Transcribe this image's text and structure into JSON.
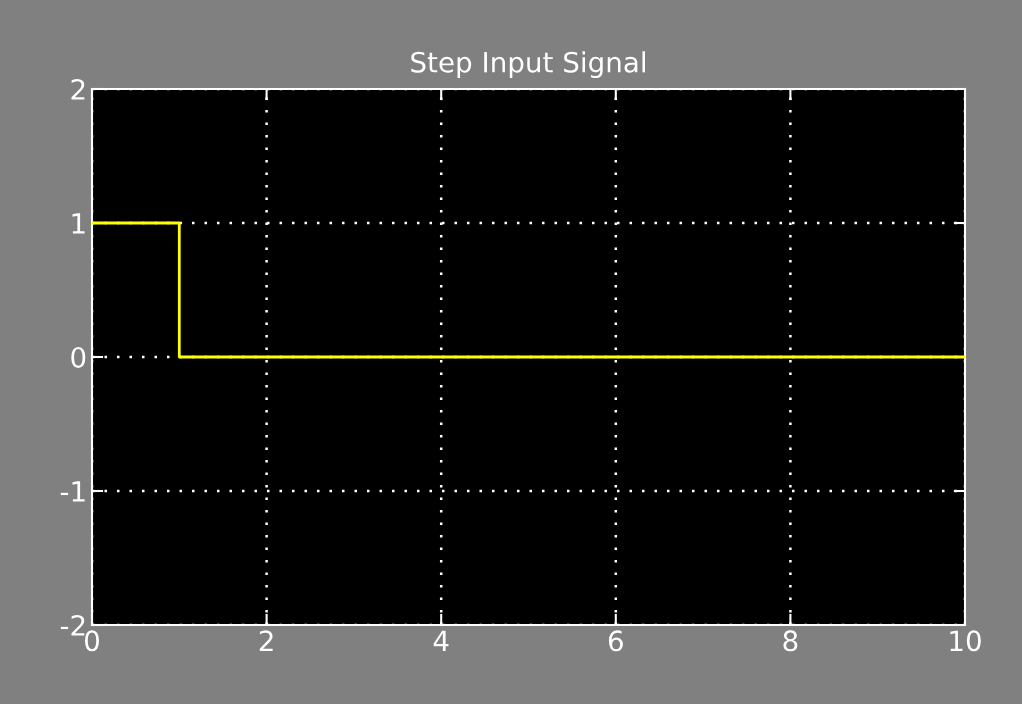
{
  "chart_data": {
    "type": "step",
    "title": "Step Input Signal",
    "x": [
      0,
      1,
      10
    ],
    "values": [
      1,
      0,
      0
    ],
    "color": "#ffff00",
    "xlim": [
      0,
      10
    ],
    "ylim": [
      -2,
      2
    ],
    "xticks": [
      0,
      2,
      4,
      6,
      8,
      10
    ],
    "yticks": [
      -2,
      -1,
      0,
      1,
      2
    ],
    "grid": true
  }
}
